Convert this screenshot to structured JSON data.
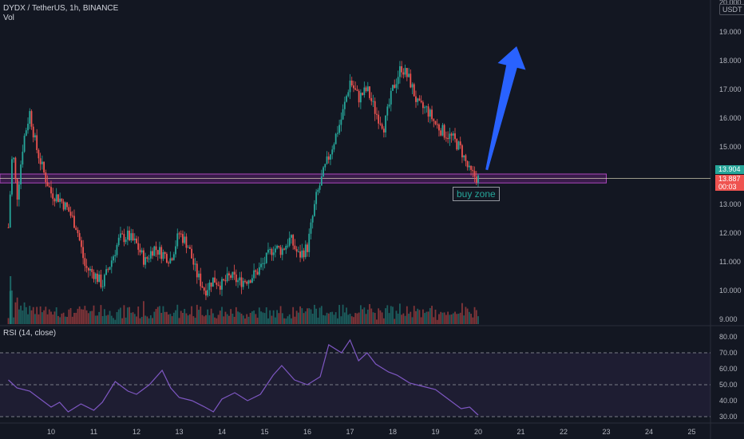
{
  "header": {
    "title": "DYDX / TetherUS, 1h, BINANCE",
    "volume_label": "Vol",
    "currency_badge": "USDT"
  },
  "rsi": {
    "label": "RSI (14, close)",
    "levels": [
      "80.00",
      "70.00",
      "60.00",
      "50.00",
      "40.00",
      "30.00"
    ]
  },
  "price_axis": {
    "top_label": "20.000",
    "labels": [
      "19.000",
      "18.000",
      "17.000",
      "16.000",
      "15.000",
      "13.000",
      "12.000",
      "11.000",
      "10.000",
      "9.000"
    ],
    "current_price": "13.904",
    "price_tag_2": "13.887",
    "price_tag_3": "00:03"
  },
  "time_axis": {
    "labels": [
      "10",
      "11",
      "12",
      "13",
      "14",
      "15",
      "16",
      "17",
      "18",
      "19",
      "20",
      "21",
      "22",
      "23",
      "24",
      "25"
    ]
  },
  "annotation": {
    "buy_zone_label": "buy zone"
  },
  "colors": {
    "background": "#131722",
    "up": "#26a69a",
    "down": "#ef5350",
    "rsi_line": "#7e57c2",
    "zone": "#9c27b0",
    "arrow": "#2962ff"
  },
  "chart_data": {
    "type": "candlestick",
    "symbol": "DYDX / TetherUS",
    "interval": "1h",
    "exchange": "BINANCE",
    "x_days": [
      10,
      11,
      12,
      13,
      14,
      15,
      16,
      17,
      18,
      19,
      20,
      21,
      22,
      23,
      24,
      25
    ],
    "ylim": [
      8.9,
      20.0
    ],
    "close_path": [
      [
        9.0,
        12.2
      ],
      [
        9.1,
        15.0
      ],
      [
        9.2,
        13.2
      ],
      [
        9.35,
        15.2
      ],
      [
        9.5,
        16.2
      ],
      [
        9.65,
        15.0
      ],
      [
        9.85,
        14.0
      ],
      [
        10.0,
        13.4
      ],
      [
        10.2,
        13.2
      ],
      [
        10.4,
        12.8
      ],
      [
        10.6,
        12.2
      ],
      [
        10.8,
        10.8
      ],
      [
        11.0,
        10.6
      ],
      [
        11.2,
        10.2
      ],
      [
        11.4,
        11.0
      ],
      [
        11.6,
        11.8
      ],
      [
        11.8,
        11.9
      ],
      [
        12.0,
        11.6
      ],
      [
        12.2,
        11.0
      ],
      [
        12.4,
        11.5
      ],
      [
        12.6,
        11.3
      ],
      [
        12.8,
        11.1
      ],
      [
        13.0,
        12.0
      ],
      [
        13.2,
        11.6
      ],
      [
        13.4,
        10.6
      ],
      [
        13.6,
        10.0
      ],
      [
        13.8,
        10.4
      ],
      [
        14.0,
        10.2
      ],
      [
        14.2,
        10.5
      ],
      [
        14.4,
        10.3
      ],
      [
        14.6,
        10.4
      ],
      [
        14.8,
        10.6
      ],
      [
        15.0,
        11.0
      ],
      [
        15.2,
        11.5
      ],
      [
        15.4,
        11.4
      ],
      [
        15.6,
        11.8
      ],
      [
        15.8,
        11.2
      ],
      [
        16.0,
        11.5
      ],
      [
        16.2,
        13.2
      ],
      [
        16.4,
        14.2
      ],
      [
        16.6,
        15.1
      ],
      [
        16.8,
        16.0
      ],
      [
        17.0,
        17.3
      ],
      [
        17.2,
        16.7
      ],
      [
        17.4,
        17.0
      ],
      [
        17.6,
        16.2
      ],
      [
        17.8,
        15.7
      ],
      [
        18.0,
        17.0
      ],
      [
        18.2,
        17.8
      ],
      [
        18.4,
        17.3
      ],
      [
        18.6,
        16.4
      ],
      [
        18.8,
        16.3
      ],
      [
        19.0,
        15.8
      ],
      [
        19.2,
        15.5
      ],
      [
        19.4,
        15.3
      ],
      [
        19.6,
        14.9
      ],
      [
        19.8,
        14.1
      ],
      [
        20.0,
        13.9
      ]
    ],
    "rsi": {
      "levels": {
        "upper": 70,
        "middle": 50,
        "lower": 30
      },
      "ylim": [
        28,
        82
      ],
      "values": [
        [
          9.0,
          53
        ],
        [
          9.2,
          48
        ],
        [
          9.5,
          46
        ],
        [
          9.8,
          40
        ],
        [
          10.0,
          36
        ],
        [
          10.2,
          39
        ],
        [
          10.4,
          33
        ],
        [
          10.7,
          38
        ],
        [
          11.0,
          34
        ],
        [
          11.2,
          39
        ],
        [
          11.5,
          52
        ],
        [
          11.8,
          46
        ],
        [
          12.0,
          44
        ],
        [
          12.3,
          50
        ],
        [
          12.6,
          59
        ],
        [
          12.8,
          48
        ],
        [
          13.0,
          42
        ],
        [
          13.3,
          40
        ],
        [
          13.6,
          36
        ],
        [
          13.8,
          33
        ],
        [
          14.0,
          41
        ],
        [
          14.3,
          45
        ],
        [
          14.6,
          40
        ],
        [
          14.9,
          44
        ],
        [
          15.2,
          56
        ],
        [
          15.4,
          62
        ],
        [
          15.7,
          53
        ],
        [
          16.0,
          50
        ],
        [
          16.3,
          55
        ],
        [
          16.5,
          75
        ],
        [
          16.8,
          70
        ],
        [
          17.0,
          78
        ],
        [
          17.2,
          65
        ],
        [
          17.4,
          70
        ],
        [
          17.6,
          63
        ],
        [
          17.9,
          58
        ],
        [
          18.1,
          56
        ],
        [
          18.4,
          51
        ],
        [
          18.7,
          49
        ],
        [
          19.0,
          47
        ],
        [
          19.3,
          41
        ],
        [
          19.6,
          35
        ],
        [
          19.8,
          36
        ],
        [
          20.0,
          31
        ]
      ]
    },
    "buy_zone": {
      "price_low": 13.8,
      "price_high": 14.0,
      "day_end": 23.0
    },
    "arrow": {
      "from": [
        20.2,
        14.2
      ],
      "to": [
        20.9,
        18.5
      ]
    }
  }
}
